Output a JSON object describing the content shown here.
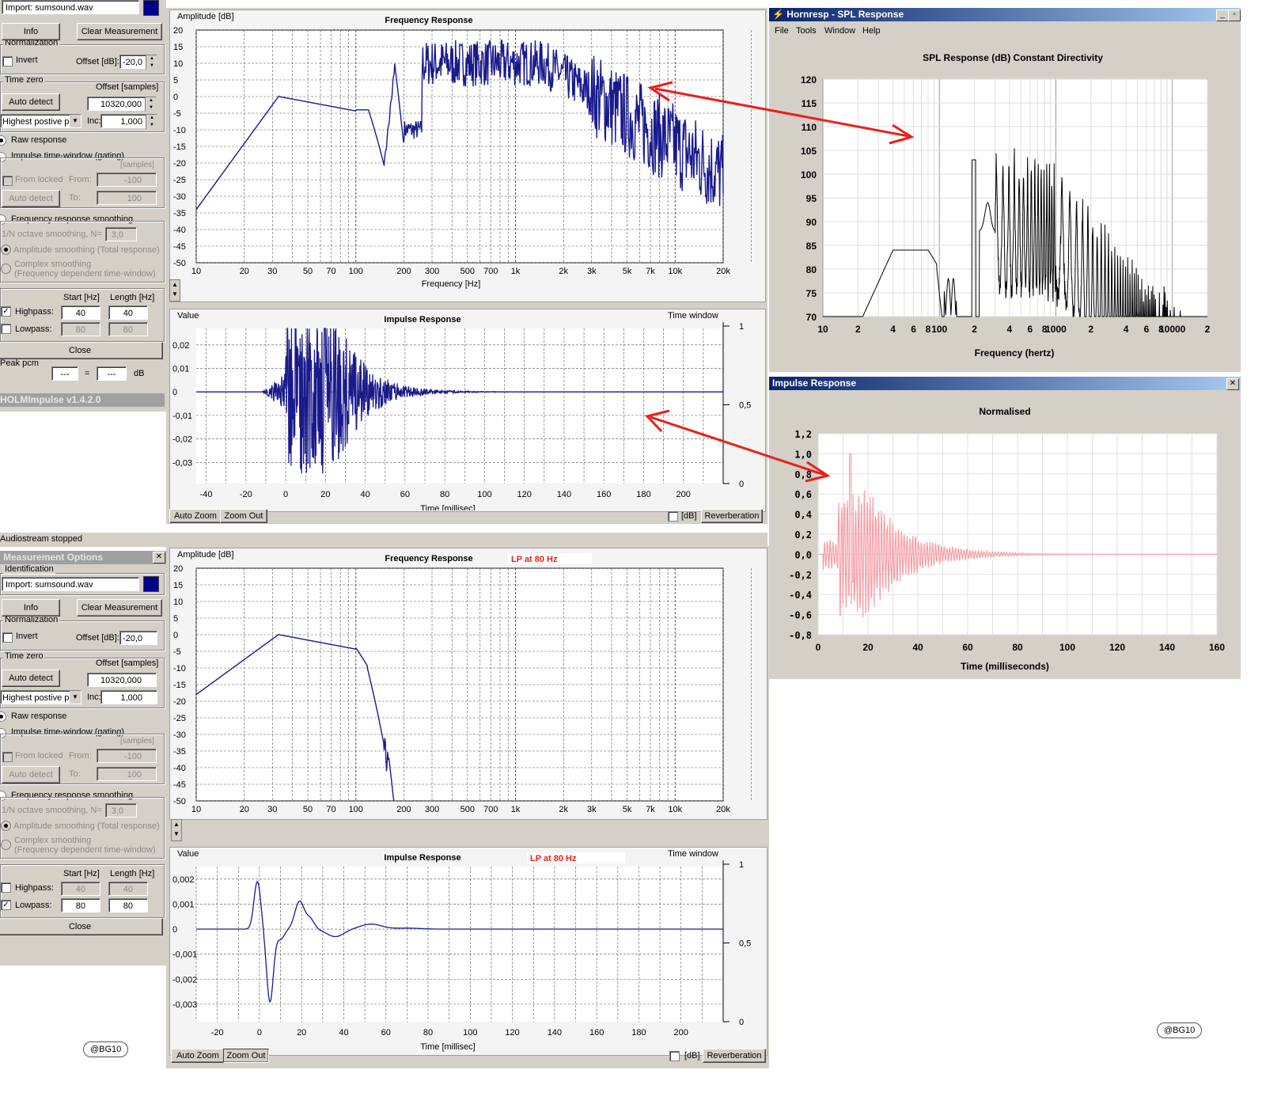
{
  "holm": {
    "top": {
      "import_label": "Import: sumsound.wav",
      "normalization": "Normalization",
      "info": "Info",
      "clear": "Clear Measurement",
      "invert": "Invert",
      "offset_db_label": "Offset [dB]:",
      "offset_db": "-20,0",
      "time_zero": "Time zero",
      "offset_samples_label": "Offset [samples]",
      "auto_detect": "Auto detect",
      "offset_samples": "10320,000",
      "highest": "Highest postive pe",
      "inc_label": "Inc:",
      "inc": "1,000",
      "raw": "Raw response",
      "impulse_window": "Impulse time-window (gating)",
      "samples": "[samples]",
      "from_locked": "From locked",
      "from": "From:",
      "from_val": "-100",
      "auto_detect2": "Auto detect",
      "to": "To:",
      "to_val": "100",
      "freq_smoothing": "Frequency response smoothing",
      "octave": "1/N octave smoothing, N=",
      "octave_val": "3,0",
      "amp_smoothing": "Amplitude smoothing (Total response)",
      "complex1": "Complex smoothing",
      "complex2": "(Frequency dependent time-window)",
      "start_hz": "Start [Hz]",
      "length_hz": "Length [Hz]",
      "highpass": "Highpass:",
      "hp_start": "40",
      "hp_len": "40",
      "lowpass": "Lowpass:",
      "lp_start": "80",
      "lp_len": "80",
      "close": "Close",
      "peak": "Peak pcm",
      "peak_a": "---",
      "eq": "=",
      "peak_b": "---",
      "db": "dB",
      "version": "HOLMImpulse  v1.4.2.0",
      "freq_chart": {
        "title": "Frequency Response",
        "ylabel": "Amplitude [dB]",
        "xlabel": "Frequency [Hz]",
        "yticks": [
          "20",
          "15",
          "10",
          "5",
          "0",
          "-5",
          "-10",
          "-15",
          "-20",
          "-25",
          "-30",
          "-35",
          "-40",
          "-45",
          "-50"
        ],
        "xticks": [
          "10",
          "20",
          "30",
          "50",
          "70",
          "100",
          "200",
          "300",
          "500",
          "700",
          "1k",
          "2k",
          "3k",
          "5k",
          "7k",
          "10k",
          "20k"
        ]
      },
      "imp_chart": {
        "title": "Impulse Response",
        "ylabel": "Value",
        "right_label": "Time window",
        "xlabel": "Time [millisec]",
        "yticks": [
          "0,02",
          "0,01",
          "0",
          "-0,01",
          "-0,02",
          "-0,03"
        ],
        "rticks": [
          "1",
          "0,5",
          "0"
        ],
        "xticks": [
          "-40",
          "-20",
          "0",
          "20",
          "40",
          "60",
          "80",
          "100",
          "120",
          "140",
          "160",
          "180",
          "200"
        ]
      },
      "auto_zoom": "Auto Zoom",
      "zoom_out": "Zoom Out",
      "db_check": "[dB]",
      "reverberation": "Reverberation"
    },
    "status": "Audiostream stopped",
    "meas_title": "Measurement Options",
    "bottom": {
      "identification": "Identification",
      "import_label": "Import: sumsound.wav",
      "normalization": "Normalization",
      "info": "Info",
      "clear": "Clear Measurement",
      "invert": "Invert",
      "offset_db_label": "Offset [dB]:",
      "offset_db": "-20,0",
      "time_zero": "Time zero",
      "offset_samples_label": "Offset [samples]",
      "auto_detect": "Auto detect",
      "offset_samples": "10320,000",
      "highest": "Highest postive pe",
      "inc_label": "Inc:",
      "inc": "1,000",
      "raw": "Raw response",
      "impulse_window": "Impulse time-window (gating)",
      "samples": "[samples]",
      "from_locked": "From locked",
      "from": "From:",
      "from_val": "-100",
      "auto_detect2": "Auto detect",
      "to": "To:",
      "to_val": "100",
      "freq_smoothing": "Frequency response smoothing",
      "octave": "1/N octave smoothing, N=",
      "octave_val": "3,0",
      "amp_smoothing": "Amplitude smoothing (Total response)",
      "complex1": "Complex smoothing",
      "complex2": "(Frequency dependent time-window)",
      "start_hz": "Start [Hz]",
      "length_hz": "Length [Hz]",
      "highpass": "Highpass:",
      "hp_start": "40",
      "hp_len": "40",
      "lowpass": "Lowpass:",
      "lp_start": "80",
      "lp_len": "80",
      "close": "Close",
      "freq_chart": {
        "title": "Frequency Response",
        "note": "LP at 80 Hz",
        "ylabel": "Amplitude [dB]",
        "xlabel": "Frequency [Hz]",
        "yticks": [
          "20",
          "15",
          "10",
          "5",
          "0",
          "-5",
          "-10",
          "-15",
          "-20",
          "-25",
          "-30",
          "-35",
          "-40",
          "-45",
          "-50"
        ],
        "xticks": [
          "10",
          "20",
          "30",
          "50",
          "70",
          "100",
          "200",
          "300",
          "500",
          "700",
          "1k",
          "2k",
          "3k",
          "5k",
          "7k",
          "10k",
          "20k"
        ]
      },
      "imp_chart": {
        "title": "Impulse Response",
        "note": "LP at 80 Hz",
        "ylabel": "Value",
        "right_label": "Time window",
        "xlabel": "Time [millisec]",
        "yticks": [
          "0,002",
          "0,001",
          "0",
          "-0,001",
          "-0,002",
          "-0,003"
        ],
        "rticks": [
          "1",
          "0,5",
          "0"
        ],
        "xticks": [
          "-20",
          "0",
          "20",
          "40",
          "60",
          "80",
          "100",
          "120",
          "140",
          "160",
          "180",
          "200"
        ]
      },
      "auto_zoom": "Auto Zoom",
      "zoom_out": "Zoom Out",
      "db_check": "[dB]",
      "reverberation": "Reverberation"
    },
    "credit": "@BG10"
  },
  "hornresp": {
    "title": "Hornresp - SPL Response",
    "menu": [
      "File",
      "Tools",
      "Window",
      "Help"
    ],
    "spl_chart": {
      "title": "SPL Response (dB)   Constant Directivity",
      "xlabel": "Frequency (hertz)",
      "yticks": [
        "120",
        "115",
        "110",
        "105",
        "100",
        "95",
        "90",
        "85",
        "80",
        "75",
        "70"
      ],
      "xticks": [
        "10",
        "2",
        "4",
        "6",
        "8",
        "100",
        "2",
        "4",
        "6",
        "8",
        "1000",
        "2",
        "4",
        "6",
        "8",
        "10000",
        "2"
      ]
    },
    "impulse": {
      "title": "Impulse Response",
      "chart_title": "Normalised",
      "xlabel": "Time (milliseconds)",
      "yticks": [
        "1,2",
        "1,0",
        "0,8",
        "0,6",
        "0,4",
        "0,2",
        "0,0",
        "-0,2",
        "-0,4",
        "-0,6",
        "-0,8"
      ],
      "xticks": [
        "0",
        "20",
        "40",
        "60",
        "80",
        "100",
        "120",
        "140",
        "160"
      ]
    },
    "credit": "@BG10"
  },
  "colors": {
    "trace": "#1a1a8c",
    "arrow": "#e8201a",
    "pink": "#f4a0a8",
    "titlebar": "#0a246a",
    "note": "#e8201a"
  }
}
